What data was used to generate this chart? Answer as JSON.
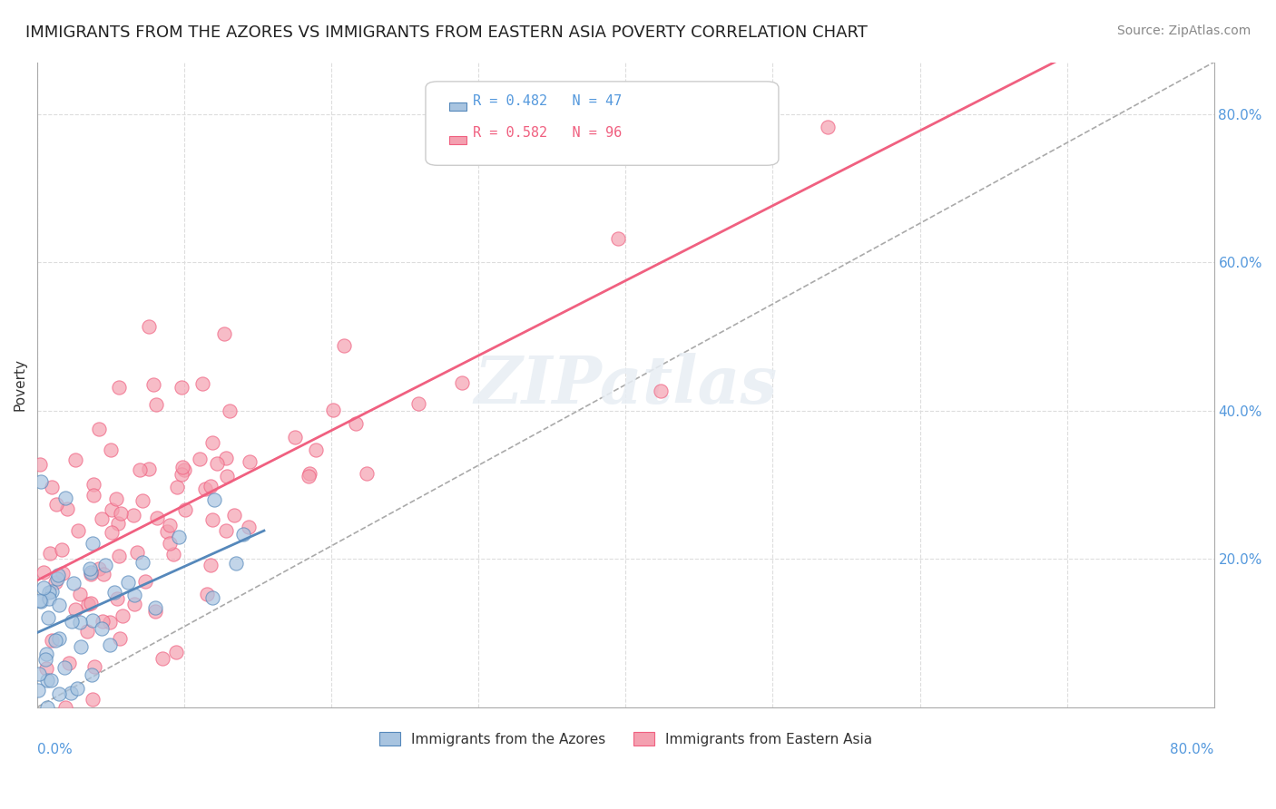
{
  "title": "IMMIGRANTS FROM THE AZORES VS IMMIGRANTS FROM EASTERN ASIA POVERTY CORRELATION CHART",
  "source": "Source: ZipAtlas.com",
  "ylabel": "Poverty",
  "xmin": 0.0,
  "xmax": 0.8,
  "ymin": 0.0,
  "ymax": 0.87,
  "legend_r1": "R = 0.482   N = 47",
  "legend_r2": "R = 0.582   N = 96",
  "color_azores": "#a8c4e0",
  "color_eastern_asia": "#f4a0b0",
  "color_azores_line": "#5588bb",
  "color_eastern_asia_line": "#f06080",
  "legend_label1": "Immigrants from the Azores",
  "legend_label2": "Immigrants from Eastern Asia",
  "watermark": "ZIPatlas",
  "background_color": "#ffffff",
  "grid_color": "#dddddd",
  "title_fontsize": 13,
  "source_fontsize": 10,
  "azores_seed": 42,
  "eastern_asia_seed": 123,
  "azores_N": 47,
  "eastern_asia_N": 96,
  "azores_R": 0.482,
  "eastern_asia_R": 0.582
}
